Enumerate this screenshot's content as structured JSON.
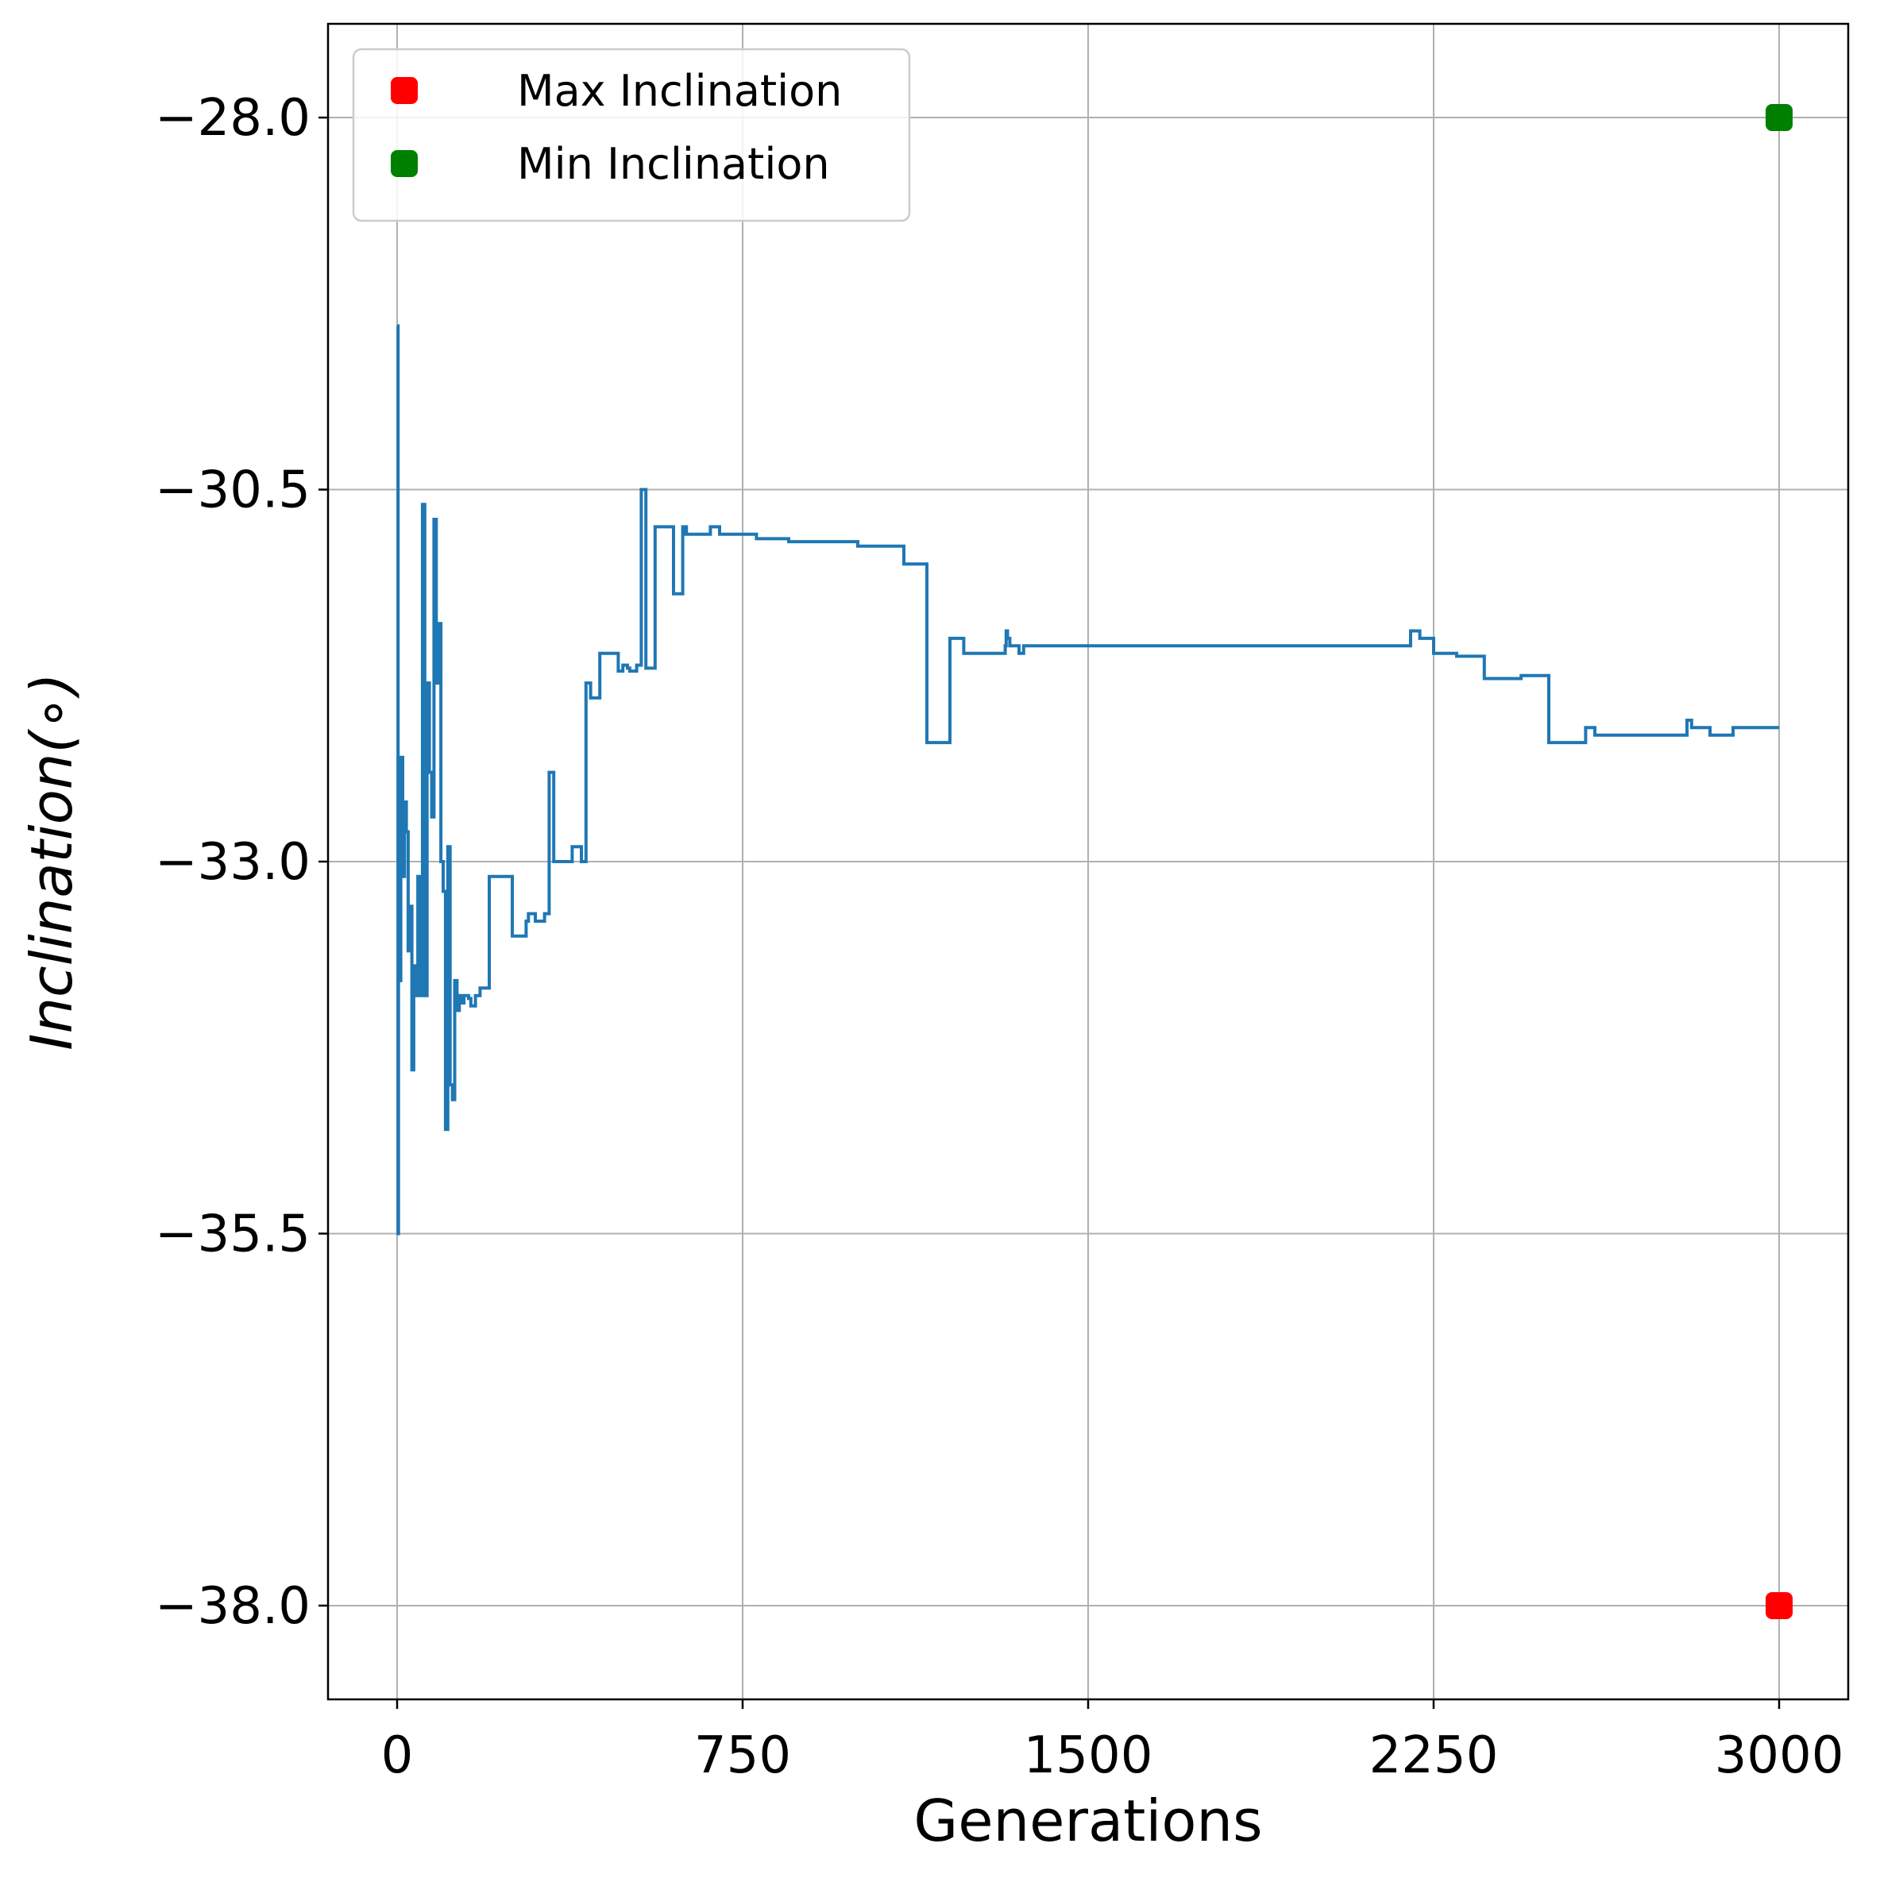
{
  "chart_data": {
    "type": "line",
    "title": "",
    "xlabel": "Generations",
    "ylabel": "Inclination(∘)",
    "xlim": [
      -150,
      3150
    ],
    "ylim": [
      -38.63,
      -27.37
    ],
    "xticks": [
      0,
      750,
      1500,
      2250,
      3000
    ],
    "xtick_labels": [
      "0",
      "750",
      "1500",
      "2250",
      "3000"
    ],
    "yticks": [
      -28.0,
      -30.5,
      -33.0,
      -35.5,
      -38.0
    ],
    "ytick_labels": [
      "−28.0",
      "−30.5",
      "−33.0",
      "−35.5",
      "−38.0"
    ],
    "grid": true,
    "legend_position": "top-left",
    "colors": {
      "line": "#1f77b4",
      "max_marker": "#ff0000",
      "min_marker": "#008000",
      "grid": "#b0b0b0"
    },
    "series": [
      {
        "kind": "step-line",
        "x": [
          0,
          2,
          3,
          5,
          8,
          12,
          16,
          20,
          24,
          28,
          32,
          36,
          40,
          45,
          50,
          55,
          60,
          65,
          70,
          75,
          80,
          85,
          90,
          95,
          100,
          105,
          110,
          115,
          120,
          125,
          130,
          135,
          140,
          145,
          150,
          155,
          160,
          170,
          180,
          200,
          250,
          280,
          285,
          300,
          320,
          330,
          340,
          380,
          400,
          410,
          420,
          440,
          480,
          490,
          500,
          505,
          520,
          530,
          540,
          560,
          600,
          620,
          622,
          625,
          628,
          640,
          680,
          700,
          750,
          780,
          800,
          850,
          900,
          1000,
          1100,
          1150,
          1200,
          1230,
          1320,
          1322,
          1325,
          1330,
          1340,
          1350,
          1360,
          1380,
          1400,
          1500,
          1800,
          2100,
          2200,
          2220,
          2240,
          2250,
          2300,
          2360,
          2370,
          2440,
          2500,
          2580,
          2600,
          2610,
          2700,
          2770,
          2800,
          2810,
          2830,
          2850,
          2900,
          3000
        ],
        "y": [
          -29.4,
          -35.5,
          -33.2,
          -33.8,
          -32.3,
          -33.1,
          -32.6,
          -32.8,
          -33.6,
          -33.3,
          -34.4,
          -33.7,
          -33.9,
          -33.1,
          -33.9,
          -30.6,
          -33.9,
          -31.8,
          -32.4,
          -32.7,
          -30.7,
          -31.8,
          -31.4,
          -33.0,
          -33.2,
          -34.8,
          -32.9,
          -34.5,
          -34.6,
          -33.8,
          -34.0,
          -33.9,
          -33.95,
          -33.9,
          -33.9,
          -33.92,
          -33.97,
          -33.9,
          -33.85,
          -33.1,
          -33.5,
          -33.4,
          -33.35,
          -33.4,
          -33.35,
          -32.4,
          -33.0,
          -32.9,
          -33.0,
          -31.8,
          -31.9,
          -31.6,
          -31.72,
          -31.68,
          -31.7,
          -31.72,
          -31.68,
          -30.5,
          -31.7,
          -30.75,
          -31.2,
          -30.75,
          -30.8,
          -30.75,
          -30.8,
          -30.8,
          -30.75,
          -30.8,
          -30.8,
          -30.83,
          -30.83,
          -30.85,
          -30.85,
          -30.88,
          -31.0,
          -32.2,
          -31.5,
          -31.6,
          -31.55,
          -31.45,
          -31.5,
          -31.55,
          -31.55,
          -31.6,
          -31.55,
          -31.55,
          -31.55,
          -31.55,
          -31.55,
          -31.55,
          -31.45,
          -31.5,
          -31.5,
          -31.6,
          -31.62,
          -31.77,
          -31.77,
          -31.75,
          -32.2,
          -32.1,
          -32.15,
          -32.15,
          -32.15,
          -32.15,
          -32.05,
          -32.1,
          -32.1,
          -32.15,
          -32.1,
          -32.1
        ]
      },
      {
        "name": "Max Inclination",
        "kind": "marker",
        "color": "#ff0000",
        "x": [
          3000
        ],
        "y": [
          -38.0
        ]
      },
      {
        "name": "Min Inclination",
        "kind": "marker",
        "color": "#008000",
        "x": [
          3000
        ],
        "y": [
          -28.0
        ]
      }
    ]
  }
}
